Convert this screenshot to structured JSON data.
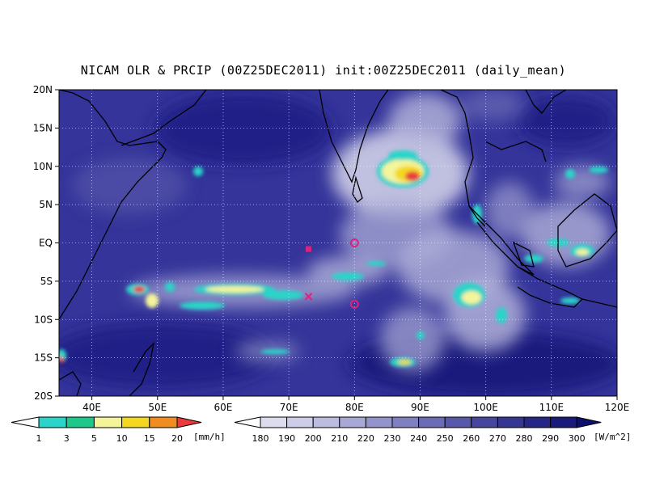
{
  "title": "NICAM OLR & PRCIP (00Z25DEC2011) init:00Z25DEC2011 (daily_mean)",
  "map": {
    "lon_range": [
      35,
      120
    ],
    "lat_range": [
      -20,
      20
    ],
    "lat_ticks": [
      {
        "value": 20,
        "label": "20N"
      },
      {
        "value": 15,
        "label": "15N"
      },
      {
        "value": 10,
        "label": "10N"
      },
      {
        "value": 5,
        "label": "5N"
      },
      {
        "value": 0,
        "label": "EQ"
      },
      {
        "value": -5,
        "label": "5S"
      },
      {
        "value": -10,
        "label": "10S"
      },
      {
        "value": -15,
        "label": "15S"
      },
      {
        "value": -20,
        "label": "20S"
      }
    ],
    "lon_ticks": [
      {
        "value": 40,
        "label": "40E"
      },
      {
        "value": 50,
        "label": "50E"
      },
      {
        "value": 60,
        "label": "60E"
      },
      {
        "value": 70,
        "label": "70E"
      },
      {
        "value": 80,
        "label": "80E"
      },
      {
        "value": 90,
        "label": "90E"
      },
      {
        "value": 100,
        "label": "100E"
      },
      {
        "value": 110,
        "label": "110E"
      },
      {
        "value": 120,
        "label": "120E"
      }
    ],
    "grid": "dotted",
    "markers": [
      {
        "type": "circle",
        "lon": 80,
        "lat": 0,
        "color": "#e0207a"
      },
      {
        "type": "circle",
        "lon": 80,
        "lat": -8,
        "color": "#e0207a"
      },
      {
        "type": "square",
        "lon": 73,
        "lat": -0.8,
        "color": "#e0207a"
      },
      {
        "type": "cross",
        "lon": 73,
        "lat": -7,
        "color": "#e0207a"
      }
    ]
  },
  "precip_colorbar": {
    "unit": "[mm/h]",
    "labels": [
      "1",
      "3",
      "5",
      "10",
      "15",
      "20"
    ],
    "colors": [
      "#2ad4c8",
      "#1ec88a",
      "#f4f49a",
      "#f4d820",
      "#f08c20",
      "#e83c3c"
    ]
  },
  "olr_colorbar": {
    "unit": "[W/m^2]",
    "labels": [
      "180",
      "190",
      "200",
      "210",
      "220",
      "230",
      "240",
      "250",
      "260",
      "270",
      "280",
      "290",
      "300"
    ],
    "colors": [
      "#e8e8f4",
      "#dcdcee",
      "#cdcde8",
      "#bcbce0",
      "#a8a8d6",
      "#9494cc",
      "#8080c0",
      "#6c6cb6",
      "#5858aa",
      "#46469e",
      "#353592",
      "#262686",
      "#1a1a7a",
      "#10106c"
    ]
  }
}
